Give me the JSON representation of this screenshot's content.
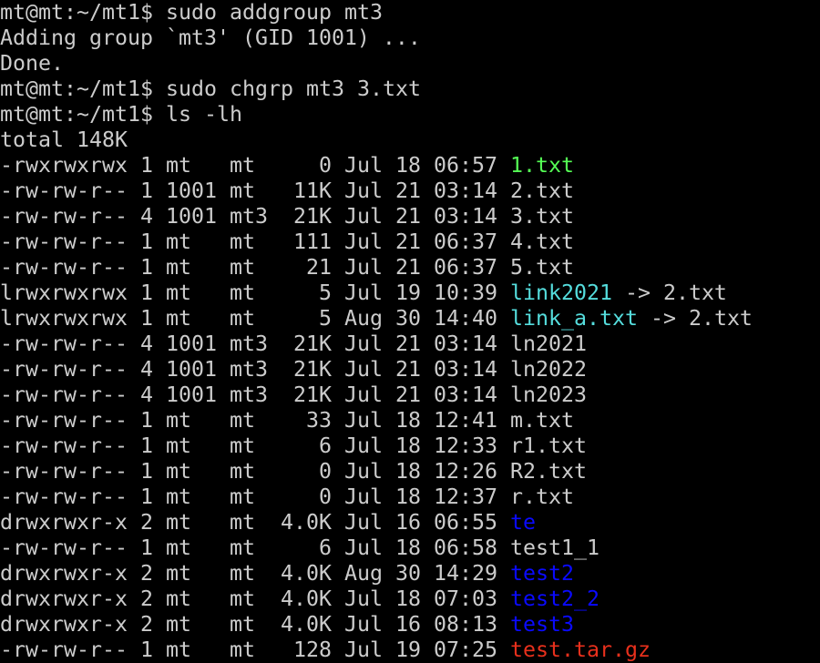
{
  "terminal": {
    "colors": {
      "default": "#cccccc",
      "exec": "#55ff55",
      "link": "#55dddd",
      "dir": "#0a0aff",
      "archive": "#e8301c"
    },
    "prompt": "mt@mt:~/mt1$ ",
    "pre_lines": [
      {
        "kind": "command",
        "text": "sudo addgroup mt3"
      },
      {
        "kind": "output",
        "text": "Adding group `mt3' (GID 1001) ..."
      },
      {
        "kind": "output",
        "text": "Done."
      },
      {
        "kind": "command",
        "text": "sudo chgrp mt3 3.txt"
      },
      {
        "kind": "command",
        "text": "ls -lh"
      },
      {
        "kind": "output",
        "text": "total 148K"
      }
    ],
    "listing": [
      {
        "perms": "-rwxrwxrwx",
        "links": "1",
        "owner": "mt",
        "group": "mt",
        "size": "0",
        "date": "Jul 18 06:57",
        "name": "1.txt",
        "type": "exec"
      },
      {
        "perms": "-rw-rw-r--",
        "links": "1",
        "owner": "1001",
        "group": "mt",
        "size": "11K",
        "date": "Jul 21 03:14",
        "name": "2.txt",
        "type": "default"
      },
      {
        "perms": "-rw-rw-r--",
        "links": "4",
        "owner": "1001",
        "group": "mt3",
        "size": "21K",
        "date": "Jul 21 03:14",
        "name": "3.txt",
        "type": "default"
      },
      {
        "perms": "-rw-rw-r--",
        "links": "1",
        "owner": "mt",
        "group": "mt",
        "size": "111",
        "date": "Jul 21 06:37",
        "name": "4.txt",
        "type": "default"
      },
      {
        "perms": "-rw-rw-r--",
        "links": "1",
        "owner": "mt",
        "group": "mt",
        "size": "21",
        "date": "Jul 21 06:37",
        "name": "5.txt",
        "type": "default"
      },
      {
        "perms": "lrwxrwxrwx",
        "links": "1",
        "owner": "mt",
        "group": "mt",
        "size": "5",
        "date": "Jul 19 10:39",
        "name": "link2021",
        "type": "link",
        "target": "-> 2.txt"
      },
      {
        "perms": "lrwxrwxrwx",
        "links": "1",
        "owner": "mt",
        "group": "mt",
        "size": "5",
        "date": "Aug 30 14:40",
        "name": "link_a.txt",
        "type": "link",
        "target": "-> 2.txt"
      },
      {
        "perms": "-rw-rw-r--",
        "links": "4",
        "owner": "1001",
        "group": "mt3",
        "size": "21K",
        "date": "Jul 21 03:14",
        "name": "ln2021",
        "type": "default"
      },
      {
        "perms": "-rw-rw-r--",
        "links": "4",
        "owner": "1001",
        "group": "mt3",
        "size": "21K",
        "date": "Jul 21 03:14",
        "name": "ln2022",
        "type": "default"
      },
      {
        "perms": "-rw-rw-r--",
        "links": "4",
        "owner": "1001",
        "group": "mt3",
        "size": "21K",
        "date": "Jul 21 03:14",
        "name": "ln2023",
        "type": "default"
      },
      {
        "perms": "-rw-rw-r--",
        "links": "1",
        "owner": "mt",
        "group": "mt",
        "size": "33",
        "date": "Jul 18 12:41",
        "name": "m.txt",
        "type": "default"
      },
      {
        "perms": "-rw-rw-r--",
        "links": "1",
        "owner": "mt",
        "group": "mt",
        "size": "6",
        "date": "Jul 18 12:33",
        "name": "r1.txt",
        "type": "default"
      },
      {
        "perms": "-rw-rw-r--",
        "links": "1",
        "owner": "mt",
        "group": "mt",
        "size": "0",
        "date": "Jul 18 12:26",
        "name": "R2.txt",
        "type": "default"
      },
      {
        "perms": "-rw-rw-r--",
        "links": "1",
        "owner": "mt",
        "group": "mt",
        "size": "0",
        "date": "Jul 18 12:37",
        "name": "r.txt",
        "type": "default"
      },
      {
        "perms": "drwxrwxr-x",
        "links": "2",
        "owner": "mt",
        "group": "mt",
        "size": "4.0K",
        "date": "Jul 16 06:55",
        "name": "te",
        "type": "dir"
      },
      {
        "perms": "-rw-rw-r--",
        "links": "1",
        "owner": "mt",
        "group": "mt",
        "size": "6",
        "date": "Jul 18 06:58",
        "name": "test1_1",
        "type": "default"
      },
      {
        "perms": "drwxrwxr-x",
        "links": "2",
        "owner": "mt",
        "group": "mt",
        "size": "4.0K",
        "date": "Aug 30 14:29",
        "name": "test2",
        "type": "dir"
      },
      {
        "perms": "drwxrwxr-x",
        "links": "2",
        "owner": "mt",
        "group": "mt",
        "size": "4.0K",
        "date": "Jul 18 07:03",
        "name": "test2_2",
        "type": "dir"
      },
      {
        "perms": "drwxrwxr-x",
        "links": "2",
        "owner": "mt",
        "group": "mt",
        "size": "4.0K",
        "date": "Jul 16 08:13",
        "name": "test3",
        "type": "dir"
      },
      {
        "perms": "-rw-rw-r--",
        "links": "1",
        "owner": "mt",
        "group": "mt",
        "size": "128",
        "date": "Jul 19 07:25",
        "name": "test.tar.gz",
        "type": "archive"
      }
    ]
  }
}
